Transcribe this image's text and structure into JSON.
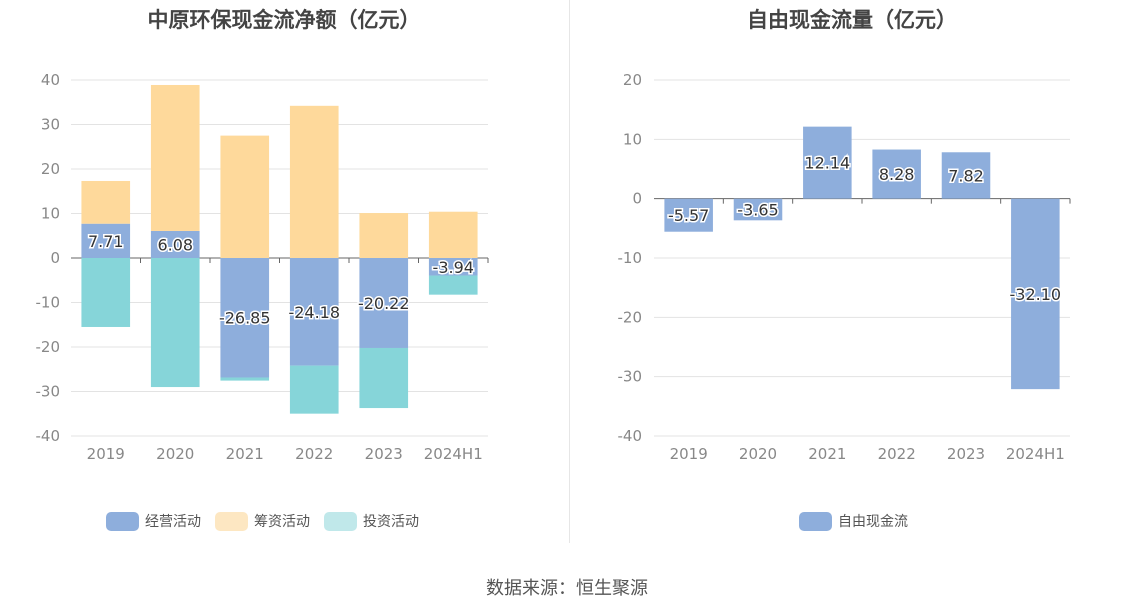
{
  "chart_data": [
    {
      "type": "bar",
      "stacked": true,
      "title": "中原环保现金流净额（亿元）",
      "categories": [
        "2019",
        "2020",
        "2021",
        "2022",
        "2023",
        "2024H1"
      ],
      "ylim": [
        -40,
        40
      ],
      "yticks": [
        40,
        30,
        20,
        10,
        0,
        -10,
        -20,
        -30,
        -40
      ],
      "grid": true,
      "legend_position": "bottom",
      "series": [
        {
          "name": "经营活动",
          "color": "#8eaedc",
          "values": [
            7.71,
            6.08,
            -26.85,
            -24.18,
            -20.22,
            -3.94
          ]
        },
        {
          "name": "筹资活动",
          "color": "#fed99b",
          "values": [
            9.6,
            32.8,
            27.5,
            34.2,
            10.1,
            10.4
          ]
        },
        {
          "name": "投资活动",
          "color": "#86d5d9",
          "values": [
            -15.5,
            -29.0,
            -0.7,
            -10.8,
            -13.5,
            -4.3
          ]
        }
      ],
      "data_labels": [
        "7.71",
        "6.08",
        "-26.85",
        "-24.18",
        "-20.22",
        "-3.94"
      ],
      "legend_colors": [
        "#8eaedc",
        "#fde7c2",
        "#c0e8ea"
      ]
    },
    {
      "type": "bar",
      "title": "自由现金流量（亿元）",
      "categories": [
        "2019",
        "2020",
        "2021",
        "2022",
        "2023",
        "2024H1"
      ],
      "ylim": [
        -40,
        20
      ],
      "yticks": [
        20,
        10,
        0,
        -10,
        -20,
        -30,
        -40
      ],
      "grid": true,
      "legend_position": "bottom",
      "series": [
        {
          "name": "自由现金流",
          "color": "#8eaedc",
          "values": [
            -5.57,
            -3.65,
            12.14,
            8.28,
            7.82,
            -32.1
          ]
        }
      ],
      "data_labels": [
        "-5.57",
        "-3.65",
        "12.14",
        "8.28",
        "7.82",
        "-32.10"
      ]
    }
  ],
  "source_text": "数据来源：恒生聚源"
}
